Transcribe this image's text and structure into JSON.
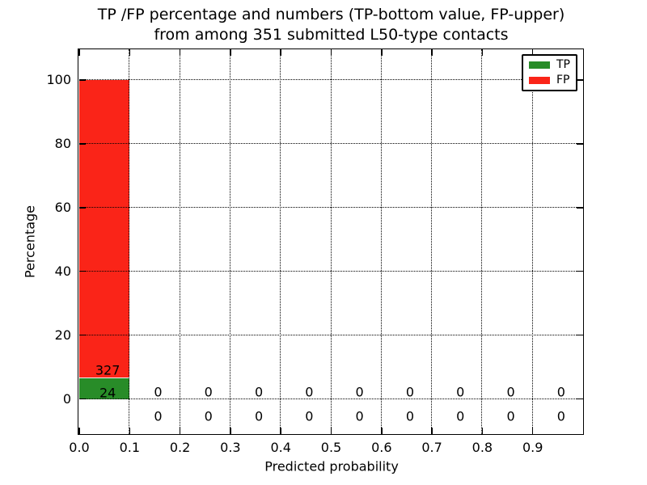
{
  "chart_data": {
    "type": "bar",
    "stacked": true,
    "title_line1": "TP /FP percentage and numbers (TP-bottom value, FP-upper)",
    "title_line2": "from among 351 submitted L50-type contacts",
    "xlabel": "Predicted probability",
    "ylabel": "Percentage",
    "total_contacts": 351,
    "bin_width": 0.1,
    "categories": [
      "0.0-0.1",
      "0.1-0.2",
      "0.2-0.3",
      "0.3-0.4",
      "0.4-0.5",
      "0.5-0.6",
      "0.6-0.7",
      "0.7-0.8",
      "0.8-0.9",
      "0.9-1.0"
    ],
    "series": [
      {
        "name": "TP",
        "color": "#288c28",
        "counts": [
          24,
          0,
          0,
          0,
          0,
          0,
          0,
          0,
          0,
          0
        ]
      },
      {
        "name": "FP",
        "color": "#fa2418",
        "counts": [
          327,
          0,
          0,
          0,
          0,
          0,
          0,
          0,
          0,
          0
        ]
      }
    ],
    "x_tick_labels": [
      "0.0",
      "0.1",
      "0.2",
      "0.3",
      "0.4",
      "0.5",
      "0.6",
      "0.7",
      "0.8",
      "0.9"
    ],
    "x_tick_values": [
      0,
      0.1,
      0.2,
      0.3,
      0.4,
      0.5,
      0.6,
      0.7,
      0.8,
      0.9
    ],
    "y_tick_labels": [
      "0",
      "20",
      "40",
      "60",
      "80",
      "100"
    ],
    "y_tick_values": [
      0,
      20,
      40,
      60,
      80,
      100
    ],
    "xlim": [
      0,
      1
    ],
    "ylim": [
      -11,
      109.6
    ],
    "grid": {
      "style": "dotted",
      "color": "#000000",
      "above_bars": true
    },
    "legend": {
      "position": "upper-right",
      "entries": [
        "TP",
        "FP"
      ]
    }
  }
}
